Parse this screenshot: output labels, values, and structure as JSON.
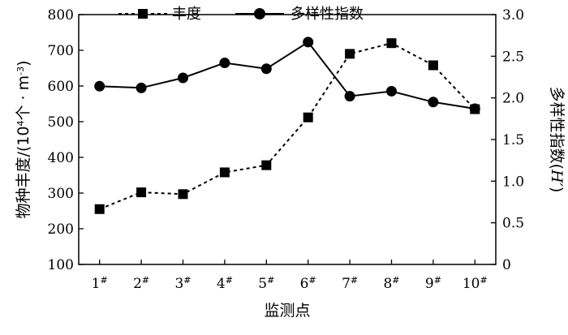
{
  "chart_data": {
    "type": "line",
    "categories": [
      "1",
      "2",
      "3",
      "4",
      "5",
      "6",
      "7",
      "8",
      "9",
      "10"
    ],
    "category_suffix": "#",
    "xlabel": "监测点",
    "ylabel_left": {
      "main": "物种丰度/(10",
      "sup": "4",
      "mid": "个 · m",
      "sup2": "-3",
      "end": ")"
    },
    "ylabel_right": {
      "main": "多样性指数(",
      "italic": "H′",
      "end": ")"
    },
    "ylim_left": [
      100,
      800
    ],
    "yticks_left": [
      100,
      200,
      300,
      400,
      500,
      600,
      700,
      800
    ],
    "ylim_right": [
      0,
      3.0
    ],
    "yticks_right": [
      "0",
      "0.5",
      "1.0",
      "1.5",
      "2.0",
      "2.5",
      "3.0"
    ],
    "legend_position": "top",
    "grid": false,
    "series": [
      {
        "name": "丰度",
        "axis": "left",
        "style": "dashed",
        "marker": "square",
        "values": [
          255,
          302,
          297,
          358,
          378,
          512,
          690,
          720,
          658,
          535
        ]
      },
      {
        "name": "多样性指数",
        "axis": "right",
        "style": "solid",
        "marker": "circle",
        "values": [
          2.14,
          2.12,
          2.24,
          2.42,
          2.35,
          2.67,
          2.02,
          2.08,
          1.95,
          1.87
        ]
      }
    ],
    "colors": {
      "line": "#000000",
      "background": "#ffffff"
    }
  }
}
